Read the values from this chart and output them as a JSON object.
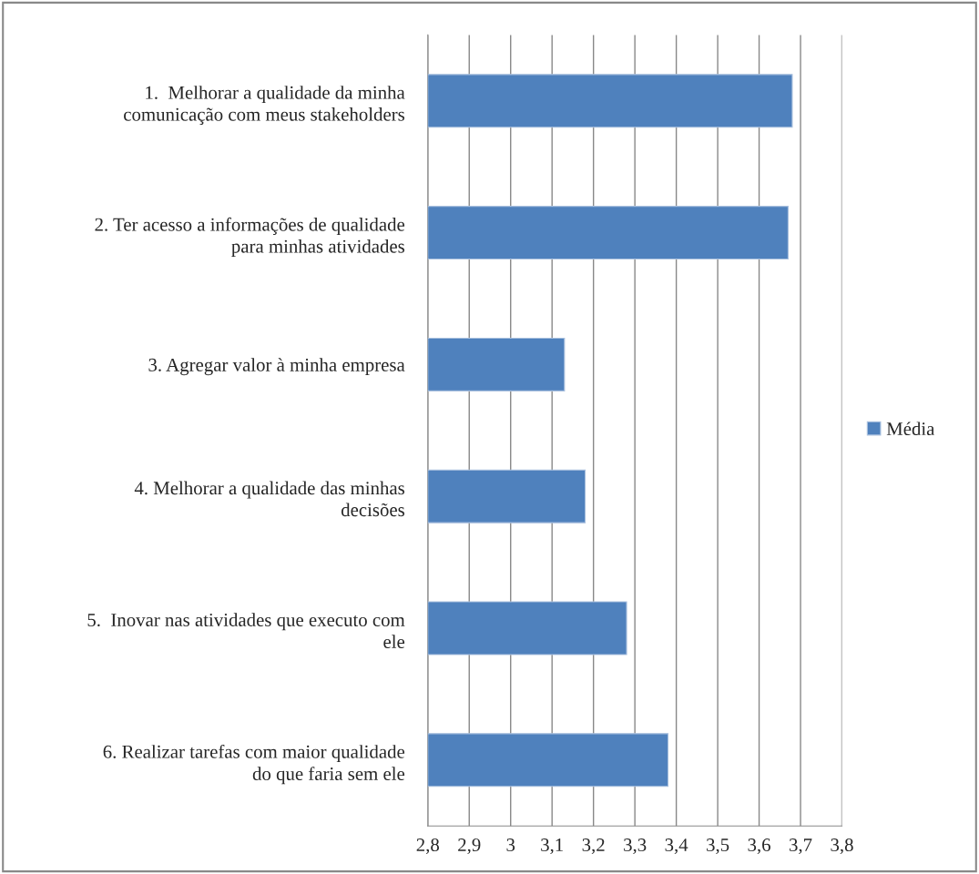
{
  "chart_data": {
    "type": "bar",
    "orientation": "horizontal",
    "categories": [
      "1.  Melhorar a qualidade da minha\ncomunicação com meus stakeholders",
      "2. Ter acesso a informações de qualidade\npara minhas atividades",
      "3. Agregar valor à minha empresa",
      "4. Melhorar a qualidade das minhas\ndecisões",
      "5.  Inovar nas atividades que executo com\nele",
      "6. Realizar tarefas com maior qualidade\ndo que faria sem ele"
    ],
    "series": [
      {
        "name": "Média",
        "color": "#4f81bd",
        "values": [
          3.68,
          3.67,
          3.13,
          3.18,
          3.28,
          3.38
        ]
      }
    ],
    "xlim": [
      2.8,
      3.8
    ],
    "xticks": [
      {
        "value": 2.8,
        "label": "2,8"
      },
      {
        "value": 2.9,
        "label": "2,9"
      },
      3,
      {
        "value": 3.1,
        "label": "3,1"
      },
      {
        "value": 3.2,
        "label": "3,2"
      },
      {
        "value": 3.3,
        "label": "3,3"
      },
      {
        "value": 3.4,
        "label": "3,4"
      },
      {
        "value": 3.5,
        "label": "3,5"
      },
      {
        "value": 3.6,
        "label": "3,6"
      },
      {
        "value": 3.7,
        "label": "3,7"
      },
      {
        "value": 3.8,
        "label": "3,8"
      }
    ],
    "grid": "x",
    "legend": "right"
  }
}
